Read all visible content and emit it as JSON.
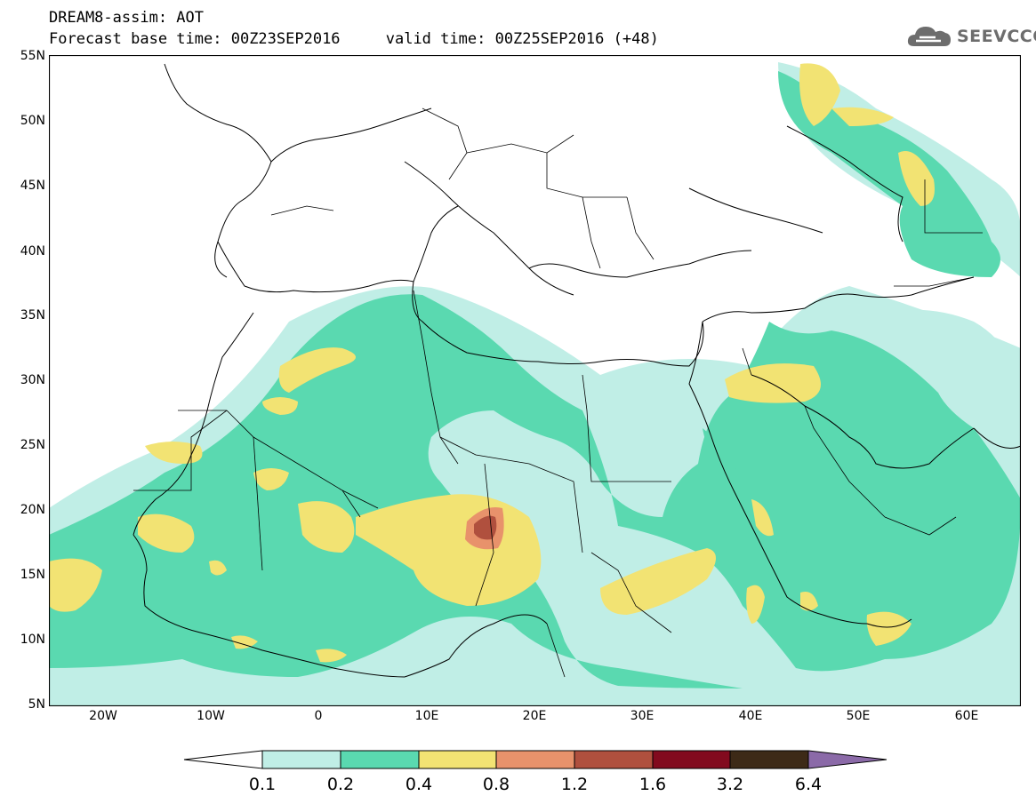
{
  "header": {
    "title": "DREAM8-assim: AOT",
    "base_label": "Forecast base time:",
    "base_value": "00Z23SEP2016",
    "valid_label": "valid time:",
    "valid_value": "00Z25SEP2016 (+48)"
  },
  "logo": {
    "text": "SEEVCCC",
    "icon": "cloud-icon"
  },
  "map": {
    "lon_range": [
      -25,
      65
    ],
    "lat_range": [
      5,
      55
    ],
    "lat_labels": [
      "55N",
      "50N",
      "45N",
      "40N",
      "35N",
      "30N",
      "25N",
      "20N",
      "15N",
      "10N",
      "5N"
    ],
    "lon_labels": [
      "20W",
      "10W",
      "0",
      "10E",
      "20E",
      "30E",
      "40E",
      "50E",
      "60E"
    ]
  },
  "legend": {
    "thresholds": [
      "0.1",
      "0.2",
      "0.4",
      "0.8",
      "1.2",
      "1.6",
      "3.2",
      "6.4"
    ],
    "colors": [
      "#c0eee6",
      "#5ad9b0",
      "#f2e373",
      "#e8926b",
      "#b0503e",
      "#820a1e",
      "#3d2a17",
      "#8b6aa8"
    ],
    "under_color": "#ffffff"
  }
}
